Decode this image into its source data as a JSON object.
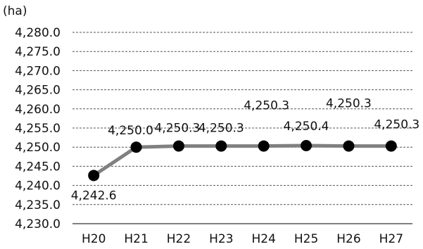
{
  "chart_data": {
    "type": "line",
    "unit_label": "(ha)",
    "categories": [
      "H20",
      "H21",
      "H22",
      "H23",
      "H24",
      "H25",
      "H26",
      "H27"
    ],
    "series": [
      {
        "values": [
          4242.6,
          4250.0,
          4250.3,
          4250.3,
          4250.3,
          4250.4,
          4250.3,
          4250.3
        ],
        "data_labels": [
          "4,242.6",
          "4,250.0",
          "4,250.3",
          "4,250.3",
          "4,250.3",
          "4,250.4",
          "4,250.3",
          "4,250.3"
        ],
        "line_color": "#808080",
        "marker_color": "#000000"
      }
    ],
    "y_ticks": [
      "4,230.0",
      "4,235.0",
      "4,240.0",
      "4,245.0",
      "4,250.0",
      "4,255.0",
      "4,260.0",
      "4,265.0",
      "4,270.0",
      "4,275.0",
      "4,280.0"
    ],
    "ylim": [
      4230,
      4280
    ],
    "y_step": 5,
    "grid": true,
    "grid_style": "dashed",
    "legend": false
  }
}
